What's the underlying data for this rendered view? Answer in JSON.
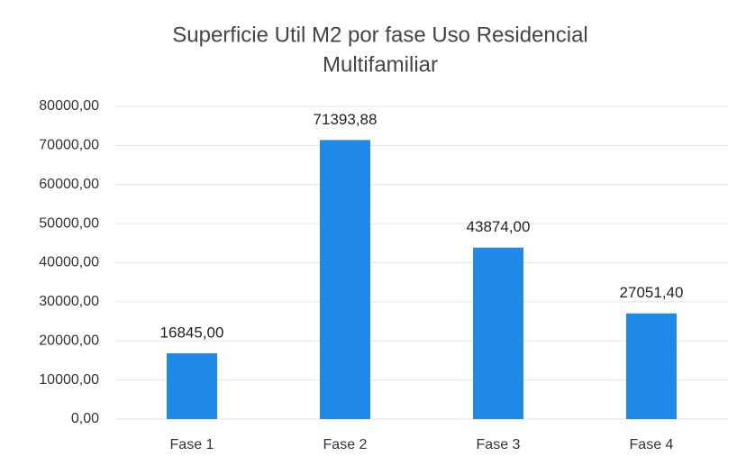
{
  "chart_data": {
    "type": "bar",
    "title": [
      "Superficie Util M2 por fase Uso Residencial",
      "Multifamiliar"
    ],
    "categories": [
      "Fase 1",
      "Fase 2",
      "Fase 3",
      "Fase 4"
    ],
    "values": [
      16845,
      71393.88,
      43874,
      27051.4
    ],
    "value_labels": [
      "16845,00",
      "71393,88",
      "43874,00",
      "27051,40"
    ],
    "color": "#1f8ae8",
    "ylim": [
      0,
      80000
    ],
    "yticks": [
      {
        "value": 0,
        "label": "0,00"
      },
      {
        "value": 10000,
        "label": "10000,00"
      },
      {
        "value": 20000,
        "label": "20000,00"
      },
      {
        "value": 30000,
        "label": "30000,00"
      },
      {
        "value": 40000,
        "label": "40000,00"
      },
      {
        "value": 50000,
        "label": "50000,00"
      },
      {
        "value": 60000,
        "label": "60000,00"
      },
      {
        "value": 70000,
        "label": "70000,00"
      },
      {
        "value": 80000,
        "label": "80000,00"
      }
    ],
    "grid": true
  }
}
